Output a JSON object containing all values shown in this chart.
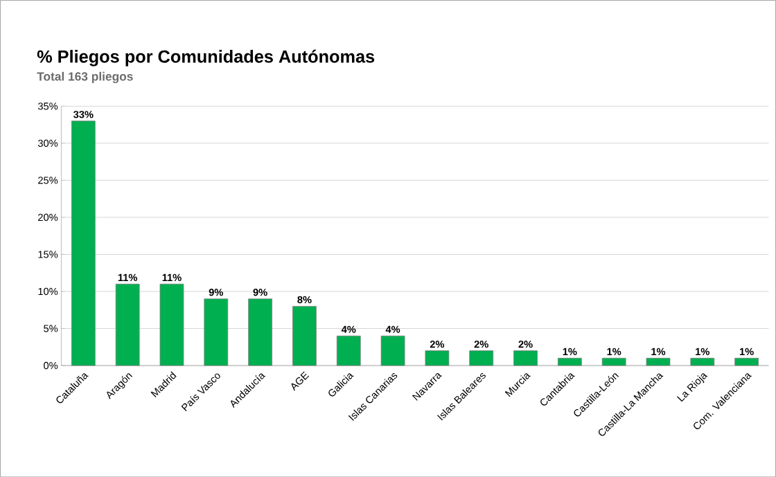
{
  "chart_data": {
    "type": "bar",
    "title": "% Pliegos por Comunidades Autónomas",
    "subtitle": "Total 163 pliegos",
    "categories": [
      "Cataluña",
      "Aragón",
      "Madrid",
      "País Vasco",
      "Andalucía",
      "AGE",
      "Galicia",
      "Islas Canarias",
      "Navarra",
      "Islas Baleares",
      "Murcia",
      "Cantabria",
      "Castilla-León",
      "Castilla-La Mancha",
      "La Rioja",
      "Com. Valenciana"
    ],
    "values": [
      33,
      11,
      11,
      9,
      9,
      8,
      4,
      4,
      2,
      2,
      2,
      1,
      1,
      1,
      1,
      1
    ],
    "value_labels": [
      "33%",
      "11%",
      "11%",
      "9%",
      "9%",
      "8%",
      "4%",
      "4%",
      "2%",
      "2%",
      "2%",
      "1%",
      "1%",
      "1%",
      "1%",
      "1%"
    ],
    "color": "#00b050",
    "ylim": [
      0,
      35
    ],
    "yticks": [
      {
        "value": 0,
        "label": "0%"
      },
      {
        "value": 5,
        "label": "5%"
      },
      {
        "value": 10,
        "label": "10%"
      },
      {
        "value": 15,
        "label": "15%"
      },
      {
        "value": 20,
        "label": "20%"
      },
      {
        "value": 25,
        "label": "25%"
      },
      {
        "value": 30,
        "label": "30%"
      },
      {
        "value": 35,
        "label": "35%"
      }
    ],
    "grid": "y"
  }
}
